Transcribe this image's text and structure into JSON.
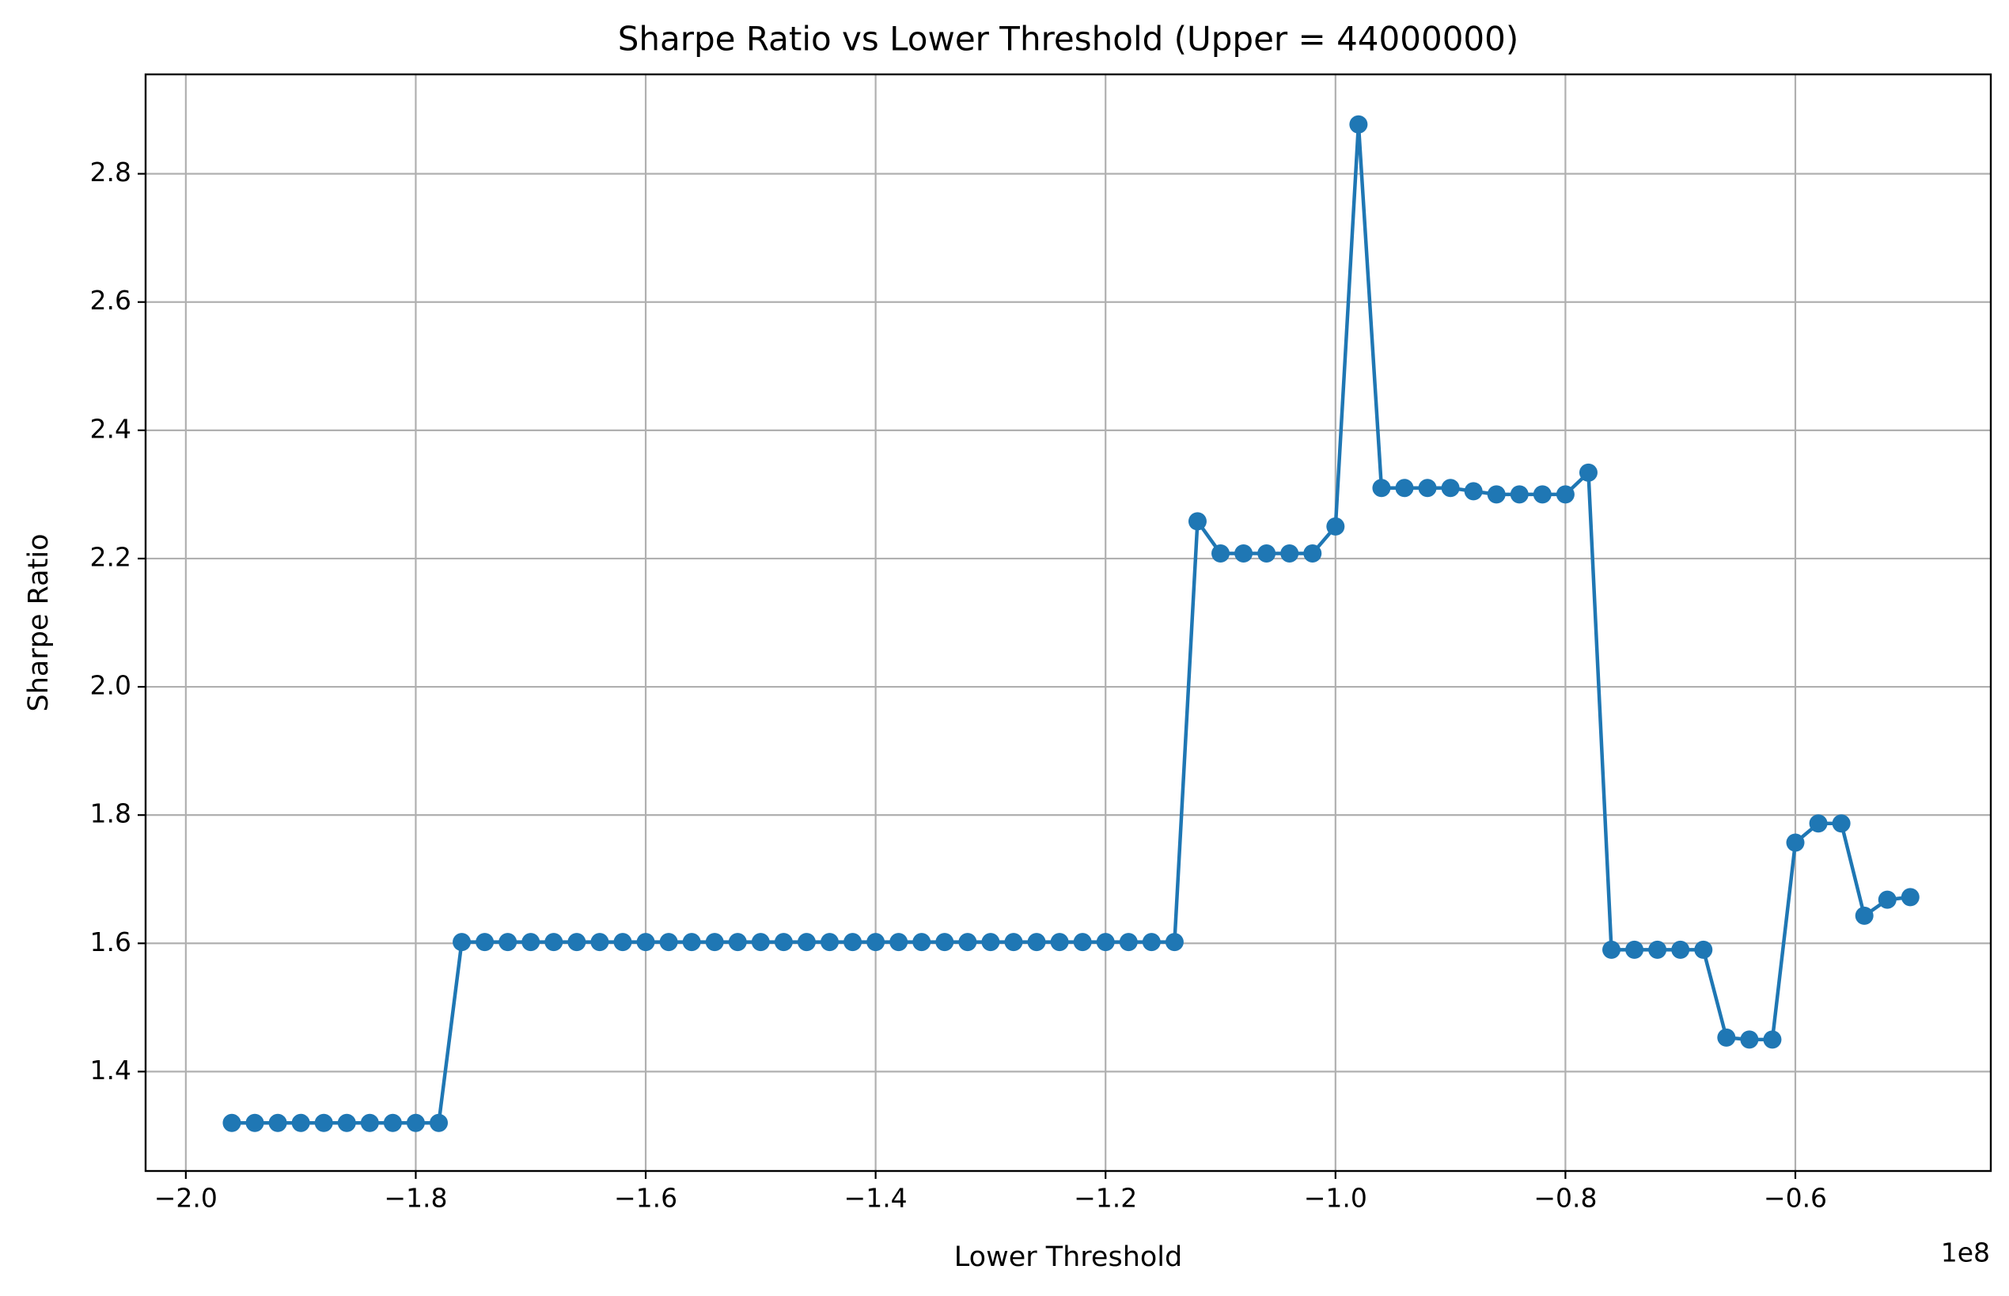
{
  "chart_data": {
    "type": "line",
    "title": "Sharpe Ratio vs Lower Threshold (Upper = 44000000)",
    "xlabel": "Lower Threshold",
    "ylabel": "Sharpe Ratio",
    "x_offset_label": "1e8",
    "xlim": [
      -2.035,
      -0.43
    ],
    "ylim": [
      1.245,
      2.955
    ],
    "xticks": [
      -2.0,
      -1.8,
      -1.6,
      -1.4,
      -1.2,
      -1.0,
      -0.8,
      -0.6
    ],
    "xtick_labels": [
      "−2.0",
      "−1.8",
      "−1.6",
      "−1.4",
      "−1.2",
      "−1.0",
      "−0.8",
      "−0.6"
    ],
    "yticks": [
      1.4,
      1.6,
      1.8,
      2.0,
      2.2,
      2.4,
      2.6,
      2.8
    ],
    "ytick_labels": [
      "1.4",
      "1.6",
      "1.8",
      "2.0",
      "2.2",
      "2.4",
      "2.6",
      "2.8"
    ],
    "grid": true,
    "marker": "circle",
    "line_color": "#1f77b4",
    "series": [
      {
        "x": [
          -1.96,
          -1.94,
          -1.92,
          -1.9,
          -1.88,
          -1.86,
          -1.84,
          -1.82,
          -1.8,
          -1.78,
          -1.76,
          -1.74,
          -1.72,
          -1.7,
          -1.68,
          -1.66,
          -1.64,
          -1.62,
          -1.6,
          -1.58,
          -1.56,
          -1.54,
          -1.52,
          -1.5,
          -1.48,
          -1.46,
          -1.44,
          -1.42,
          -1.4,
          -1.38,
          -1.36,
          -1.34,
          -1.32,
          -1.3,
          -1.28,
          -1.26,
          -1.24,
          -1.22,
          -1.2,
          -1.18,
          -1.16,
          -1.14,
          -1.12,
          -1.1,
          -1.08,
          -1.06,
          -1.04,
          -1.02,
          -1.0,
          -0.98,
          -0.96,
          -0.94,
          -0.92,
          -0.9,
          -0.88,
          -0.86,
          -0.84,
          -0.82,
          -0.8,
          -0.78,
          -0.76,
          -0.74,
          -0.72,
          -0.7,
          -0.68,
          -0.66,
          -0.64,
          -0.62,
          -0.6,
          -0.58,
          -0.56,
          -0.54,
          -0.52,
          -0.5
        ],
        "y": [
          1.32,
          1.32,
          1.32,
          1.32,
          1.32,
          1.32,
          1.32,
          1.32,
          1.32,
          1.32,
          1.602,
          1.602,
          1.602,
          1.602,
          1.602,
          1.602,
          1.602,
          1.602,
          1.602,
          1.602,
          1.602,
          1.602,
          1.602,
          1.602,
          1.602,
          1.602,
          1.602,
          1.602,
          1.602,
          1.602,
          1.602,
          1.602,
          1.602,
          1.602,
          1.602,
          1.602,
          1.602,
          1.602,
          1.602,
          1.602,
          1.602,
          1.602,
          2.258,
          2.208,
          2.208,
          2.208,
          2.208,
          2.208,
          2.25,
          2.877,
          2.31,
          2.31,
          2.31,
          2.31,
          2.305,
          2.3,
          2.3,
          2.3,
          2.3,
          2.334,
          1.59,
          1.59,
          1.59,
          1.59,
          1.59,
          1.453,
          1.45,
          1.45,
          1.757,
          1.787,
          1.787,
          1.643,
          1.668,
          1.672
        ]
      }
    ]
  }
}
